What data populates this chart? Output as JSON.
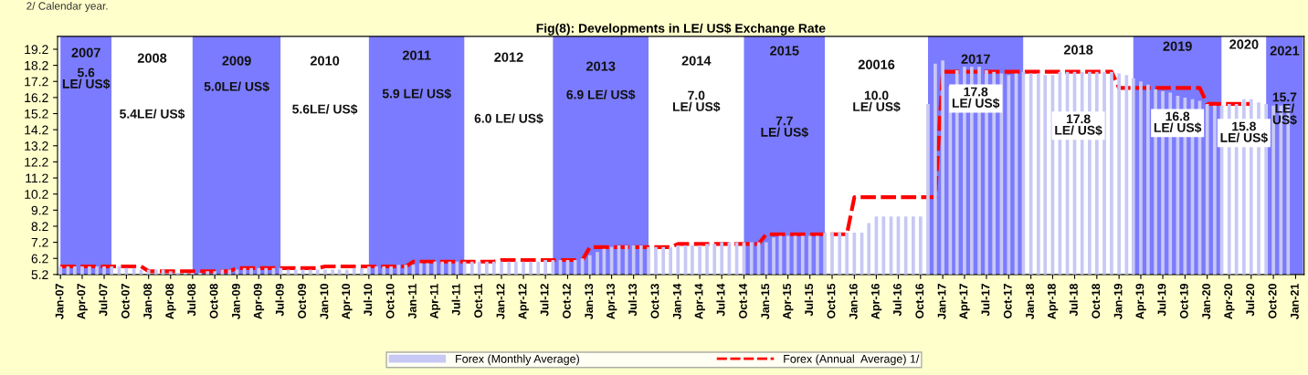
{
  "chart_data": {
    "type": "bar",
    "title": "Fig(8): Developments in LE/ US$ Exchange Rate",
    "x": [
      "2007-01",
      "2007-02",
      "2007-03",
      "2007-04",
      "2007-05",
      "2007-06",
      "2007-07",
      "2007-08",
      "2007-09",
      "2007-10",
      "2007-11",
      "2007-12",
      "2008-01",
      "2008-02",
      "2008-03",
      "2008-04",
      "2008-05",
      "2008-06",
      "2008-07",
      "2008-08",
      "2008-09",
      "2008-10",
      "2008-11",
      "2008-12",
      "2009-01",
      "2009-02",
      "2009-03",
      "2009-04",
      "2009-05",
      "2009-06",
      "2009-07",
      "2009-08",
      "2009-09",
      "2009-10",
      "2009-11",
      "2009-12",
      "2010-01",
      "2010-02",
      "2010-03",
      "2010-04",
      "2010-05",
      "2010-06",
      "2010-07",
      "2010-08",
      "2010-09",
      "2010-10",
      "2010-11",
      "2010-12",
      "2011-01",
      "2011-02",
      "2011-03",
      "2011-04",
      "2011-05",
      "2011-06",
      "2011-07",
      "2011-08",
      "2011-09",
      "2011-10",
      "2011-11",
      "2011-12",
      "2012-01",
      "2012-02",
      "2012-03",
      "2012-04",
      "2012-05",
      "2012-06",
      "2012-07",
      "2012-08",
      "2012-09",
      "2012-10",
      "2012-11",
      "2012-12",
      "2013-01",
      "2013-02",
      "2013-03",
      "2013-04",
      "2013-05",
      "2013-06",
      "2013-07",
      "2013-08",
      "2013-09",
      "2013-10",
      "2013-11",
      "2013-12",
      "2014-01",
      "2014-02",
      "2014-03",
      "2014-04",
      "2014-05",
      "2014-06",
      "2014-07",
      "2014-08",
      "2014-09",
      "2014-10",
      "2014-11",
      "2014-12",
      "2015-01",
      "2015-02",
      "2015-03",
      "2015-04",
      "2015-05",
      "2015-06",
      "2015-07",
      "2015-08",
      "2015-09",
      "2015-10",
      "2015-11",
      "2015-12",
      "2016-01",
      "2016-02",
      "2016-03",
      "2016-04",
      "2016-05",
      "2016-06",
      "2016-07",
      "2016-08",
      "2016-09",
      "2016-10",
      "2016-11",
      "2016-12",
      "2017-01",
      "2017-02",
      "2017-03",
      "2017-04",
      "2017-05",
      "2017-06",
      "2017-07",
      "2017-08",
      "2017-09",
      "2017-10",
      "2017-11",
      "2017-12",
      "2018-01",
      "2018-02",
      "2018-03",
      "2018-04",
      "2018-05",
      "2018-06",
      "2018-07",
      "2018-08",
      "2018-09",
      "2018-10",
      "2018-11",
      "2018-12",
      "2019-01",
      "2019-02",
      "2019-03",
      "2019-04",
      "2019-05",
      "2019-06",
      "2019-07",
      "2019-08",
      "2019-09",
      "2019-10",
      "2019-11",
      "2019-12",
      "2020-01",
      "2020-02",
      "2020-03",
      "2020-04",
      "2020-05",
      "2020-06",
      "2020-07",
      "2020-08",
      "2020-09",
      "2020-10",
      "2020-11",
      "2020-12"
    ],
    "series": [
      {
        "name": "Forex (Monthly Average)",
        "color": "#c8c8f5",
        "values": [
          5.7,
          5.7,
          5.7,
          5.7,
          5.7,
          5.7,
          5.7,
          5.7,
          5.7,
          5.6,
          5.6,
          5.5,
          5.5,
          5.5,
          5.5,
          5.4,
          5.3,
          5.3,
          5.3,
          5.3,
          5.4,
          5.4,
          5.5,
          5.5,
          5.5,
          5.6,
          5.6,
          5.6,
          5.6,
          5.6,
          5.6,
          5.5,
          5.5,
          5.5,
          5.5,
          5.5,
          5.5,
          5.5,
          5.5,
          5.5,
          5.6,
          5.6,
          5.7,
          5.7,
          5.7,
          5.7,
          5.8,
          5.8,
          5.8,
          5.9,
          5.9,
          6.0,
          6.0,
          6.0,
          6.0,
          6.0,
          6.0,
          6.0,
          6.0,
          6.0,
          6.0,
          6.0,
          6.0,
          6.0,
          6.0,
          6.0,
          6.1,
          6.1,
          6.1,
          6.1,
          6.1,
          6.2,
          6.4,
          6.6,
          6.8,
          6.9,
          7.0,
          7.0,
          7.0,
          7.0,
          6.9,
          6.9,
          6.9,
          6.9,
          7.0,
          7.0,
          7.0,
          7.0,
          7.1,
          7.1,
          7.2,
          7.2,
          7.2,
          7.2,
          7.2,
          7.2,
          7.2,
          7.5,
          7.6,
          7.6,
          7.6,
          7.6,
          7.6,
          7.6,
          7.8,
          7.8,
          7.8,
          7.8,
          7.8,
          7.8,
          8.4,
          8.8,
          8.8,
          8.8,
          8.8,
          8.8,
          8.8,
          8.8,
          15.8,
          18.3,
          18.5,
          16.9,
          17.9,
          18.1,
          18.1,
          18.1,
          17.9,
          17.8,
          17.7,
          17.6,
          17.7,
          17.8,
          17.7,
          17.7,
          17.6,
          17.6,
          17.8,
          17.8,
          17.8,
          17.8,
          17.8,
          17.8,
          17.8,
          17.8,
          17.7,
          17.6,
          17.4,
          17.2,
          17.0,
          16.7,
          16.6,
          16.5,
          16.3,
          16.2,
          16.1,
          16.0,
          15.8,
          15.7,
          15.7,
          15.8,
          15.8,
          16.1,
          16.1,
          15.9,
          15.8,
          15.7,
          15.7,
          15.7
        ]
      },
      {
        "name": "Forex (Annual  Average) 1/",
        "type": "line",
        "color": "#ff0000",
        "line_style": "dashed",
        "x": [
          "2007-01",
          "2007-12",
          "2008-01",
          "2008-12",
          "2009-01",
          "2009-12",
          "2010-01",
          "2010-12",
          "2011-01",
          "2011-12",
          "2012-01",
          "2012-12",
          "2013-01",
          "2013-12",
          "2014-01",
          "2014-12",
          "2015-01",
          "2015-12",
          "2016-01",
          "2016-12",
          "2017-01",
          "2018-12",
          "2019-01",
          "2019-12",
          "2020-01",
          "2020-07"
        ],
        "values": [
          5.7,
          5.7,
          5.4,
          5.4,
          5.6,
          5.6,
          5.7,
          5.7,
          6.0,
          6.0,
          6.1,
          6.1,
          6.9,
          6.9,
          7.1,
          7.1,
          7.7,
          7.7,
          10.0,
          10.0,
          17.8,
          17.8,
          16.8,
          16.8,
          15.8,
          15.8
        ]
      }
    ],
    "bands": [
      {
        "axis": "x",
        "from": "2007-01",
        "to": "2007-08",
        "label": "2007",
        "color": "#7b7bff"
      },
      {
        "axis": "x",
        "from": "2007-08",
        "to": "2008-07",
        "label": "2008",
        "color": "#ffffff"
      },
      {
        "axis": "x",
        "from": "2008-07",
        "to": "2009-07",
        "label": "2009",
        "color": "#7b7bff"
      },
      {
        "axis": "x",
        "from": "2009-07",
        "to": "2010-07",
        "label": "2010",
        "color": "#ffffff"
      },
      {
        "axis": "x",
        "from": "2010-07",
        "to": "2011-08",
        "label": "2011",
        "color": "#7b7bff"
      },
      {
        "axis": "x",
        "from": "2011-08",
        "to": "2012-08",
        "label": "2012",
        "color": "#ffffff"
      },
      {
        "axis": "x",
        "from": "2012-08",
        "to": "2013-09",
        "label": "2013",
        "color": "#7b7bff"
      },
      {
        "axis": "x",
        "from": "2013-09",
        "to": "2014-10",
        "label": "2014",
        "color": "#ffffff"
      },
      {
        "axis": "x",
        "from": "2014-10",
        "to": "2015-09",
        "label": "2015",
        "color": "#7b7bff"
      },
      {
        "axis": "x",
        "from": "2015-09",
        "to": "2016-11",
        "label": "20016",
        "color": "#ffffff"
      },
      {
        "axis": "x",
        "from": "2016-11",
        "to": "2017-12",
        "label": "2017",
        "color": "#7b7bff"
      },
      {
        "axis": "x",
        "from": "2017-12",
        "to": "2019-03",
        "label": "2018",
        "color": "#ffffff"
      },
      {
        "axis": "x",
        "from": "2019-03",
        "to": "2020-03",
        "label": "2019",
        "color": "#7b7bff"
      },
      {
        "axis": "x",
        "from": "2020-03",
        "to": "2020-09",
        "label": "2020",
        "color": "#ffffff"
      },
      {
        "axis": "x",
        "from": "2020-09",
        "to": "2021-02",
        "label": "2021",
        "color": "#7b7bff"
      }
    ],
    "annotations": [
      "5.6\nLE/ US$",
      "5.4LE/ US$",
      "5.0LE/ US$",
      "5.6LE/ US$",
      "5.9 LE/ US$",
      "6.0 LE/ US$",
      "6.9 LE/ US$",
      "7.0\nLE/ US$",
      "7.7\nLE/ US$",
      "10.0\nLE/ US$",
      "17.8\nLE/ US$",
      "17.8\nLE/ US$",
      "16.8\nLE/ US$",
      "15.8\nLE/ US$",
      "15.7\nLE/\nUS$",
      "2/ Calendar year."
    ],
    "xlim": [
      "2006-12-20",
      "2021-02-05"
    ],
    "ylim": [
      5.2,
      20.0
    ],
    "yticks": [
      5.2,
      6.2,
      7.2,
      8.2,
      9.2,
      10.2,
      11.2,
      12.2,
      13.2,
      14.2,
      15.2,
      16.2,
      17.2,
      18.2,
      19.2
    ],
    "xticks": [
      {
        "value": "2007-01",
        "label": "Jan-07"
      },
      {
        "value": "2007-04",
        "label": "Apr-07"
      },
      {
        "value": "2007-07",
        "label": "Jul-07"
      },
      {
        "value": "2007-10",
        "label": "Oct-07"
      },
      {
        "value": "2008-01",
        "label": "Jan-08"
      },
      {
        "value": "2008-04",
        "label": "Apr-08"
      },
      {
        "value": "2008-07",
        "label": "Jul-08"
      },
      {
        "value": "2008-10",
        "label": "Oct-08"
      },
      {
        "value": "2009-01",
        "label": "Jan-09"
      },
      {
        "value": "2009-04",
        "label": "Apr-09"
      },
      {
        "value": "2009-07",
        "label": "Jul-09"
      },
      {
        "value": "2009-10",
        "label": "Oct-09"
      },
      {
        "value": "2010-01",
        "label": "Jan-10"
      },
      {
        "value": "2010-04",
        "label": "Apr-10"
      },
      {
        "value": "2010-07",
        "label": "Jul-10"
      },
      {
        "value": "2010-10",
        "label": "Oct-10"
      },
      {
        "value": "2011-01",
        "label": "Jan-11"
      },
      {
        "value": "2011-04",
        "label": "Apr-11"
      },
      {
        "value": "2011-07",
        "label": "Jul-11"
      },
      {
        "value": "2011-10",
        "label": "Oct-11"
      },
      {
        "value": "2012-01",
        "label": "Jan-12"
      },
      {
        "value": "2012-04",
        "label": "Apr-12"
      },
      {
        "value": "2012-07",
        "label": "Jul-12"
      },
      {
        "value": "2012-10",
        "label": "Oct-12"
      },
      {
        "value": "2013-01",
        "label": "Jan-13"
      },
      {
        "value": "2013-04",
        "label": "Apr-13"
      },
      {
        "value": "2013-07",
        "label": "Jul-13"
      },
      {
        "value": "2013-10",
        "label": "Oct-13"
      },
      {
        "value": "2014-01",
        "label": "Jan-14"
      },
      {
        "value": "2014-04",
        "label": "Apr-14"
      },
      {
        "value": "2014-07",
        "label": "Jul-14"
      },
      {
        "value": "2014-10",
        "label": "Oct-14"
      },
      {
        "value": "2015-01",
        "label": "Jan-15"
      },
      {
        "value": "2015-04",
        "label": "Apr-15"
      },
      {
        "value": "2015-07",
        "label": "Jul-15"
      },
      {
        "value": "2015-10",
        "label": "Oct-15"
      },
      {
        "value": "2016-01",
        "label": "Jan-16"
      },
      {
        "value": "2016-04",
        "label": "Apr-16"
      },
      {
        "value": "2016-07",
        "label": "Jul-16"
      },
      {
        "value": "2016-10",
        "label": "Oct-16"
      },
      {
        "value": "2017-01",
        "label": "Jan-17"
      },
      {
        "value": "2017-04",
        "label": "Apr-17"
      },
      {
        "value": "2017-07",
        "label": "Jul-17"
      },
      {
        "value": "2017-10",
        "label": "Oct-17"
      },
      {
        "value": "2018-01",
        "label": "Jan-18"
      },
      {
        "value": "2018-04",
        "label": "Apr-18"
      },
      {
        "value": "2018-07",
        "label": "Jul-18"
      },
      {
        "value": "2018-10",
        "label": "Oct-18"
      },
      {
        "value": "2019-01",
        "label": "Jan-19"
      },
      {
        "value": "2019-04",
        "label": "Apr-19"
      },
      {
        "value": "2019-07",
        "label": "Jul-19"
      },
      {
        "value": "2019-10",
        "label": "Oct-19"
      },
      {
        "value": "2020-01",
        "label": "Jan-20"
      },
      {
        "value": "2020-04",
        "label": "Apr-20"
      },
      {
        "value": "2020-07",
        "label": "Jul-20"
      },
      {
        "value": "2020-10",
        "label": "Oct-20"
      },
      {
        "value": "2021-01",
        "label": "Jan-21"
      }
    ],
    "legend": "bottom"
  }
}
